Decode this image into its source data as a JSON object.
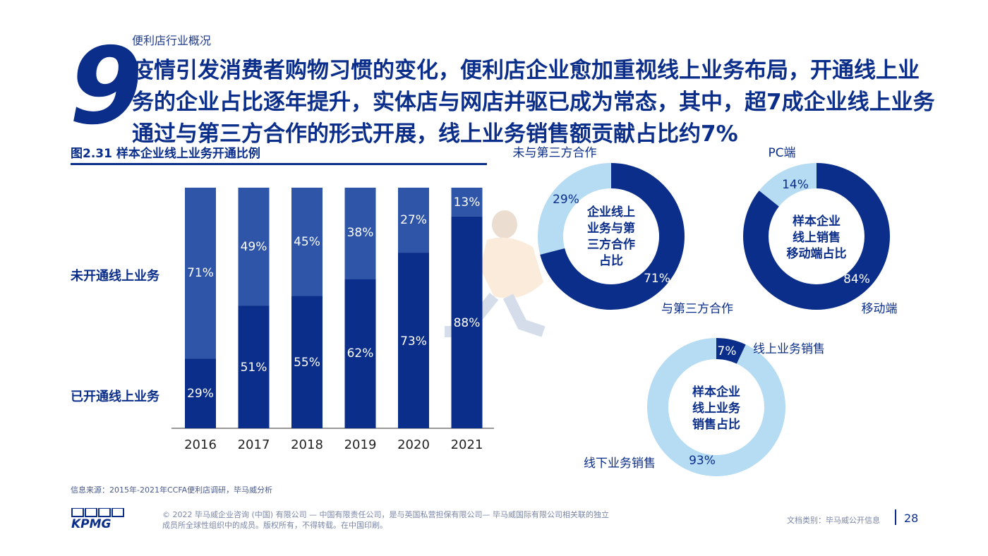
{
  "section_label": "便利店行业概况",
  "big_number": "9",
  "headline": "疫情引发消费者购物习惯的变化，便利店企业愈加重视线上业务布局，开通线上业务的企业占比逐年提升，实体店与网店并驱已成为常态，其中，超7成企业线上业务通过与第三方合作的形式开展，线上业务销售额贡献占比约7%",
  "figure_title": "图2.31 样本企业线上业务开通比例",
  "row_labels": {
    "not_open": "未开通线上业务",
    "open": "已开通线上业务"
  },
  "source": "信息来源：2015年-2021年CCFA便利店调研，毕马威分析",
  "footer": {
    "copyright": "© 2022 毕马威企业咨询 (中国) 有限公司 — 中国有限责任公司，是与英国私营担保有限公司— 毕马威国际有限公司相关联的独立成员所全球性组织中的成员。版权所有，不得转载。在中国印刷。",
    "doc_class": "文档类别：毕马威公开信息",
    "page": "28",
    "logo": "KPMG"
  },
  "colors": {
    "dark": "#0b2e8a",
    "mid": "#2f55a8",
    "light": "#b5dcf3",
    "accent": "#0b2e8a"
  },
  "chart_data": [
    {
      "type": "bar",
      "title": "图2.31 样本企业线上业务开通比例",
      "stacked": true,
      "categories": [
        "2016",
        "2017",
        "2018",
        "2019",
        "2020",
        "2021"
      ],
      "series": [
        {
          "name": "已开通线上业务",
          "values": [
            29,
            51,
            55,
            62,
            73,
            88
          ],
          "labels": [
            "29%",
            "51%",
            "55%",
            "62%",
            "73%",
            "88%"
          ]
        },
        {
          "name": "未开通线上业务",
          "values": [
            71,
            49,
            45,
            38,
            27,
            13
          ],
          "labels": [
            "71%",
            "49%",
            "45%",
            "38%",
            "27%",
            "13%"
          ]
        }
      ],
      "ylim": [
        0,
        100
      ]
    },
    {
      "type": "pie",
      "donut": true,
      "center_label": "企业线上业务与第三方合作占比",
      "center_lines": [
        "企业线上",
        "业务与第",
        "三方合作",
        "占比"
      ],
      "slices": [
        {
          "name": "与第三方合作",
          "value": 71,
          "label": "71%",
          "color": "#0b2e8a"
        },
        {
          "name": "未与第三方合作",
          "value": 29,
          "label": "29%",
          "color": "#b5dcf3"
        }
      ]
    },
    {
      "type": "pie",
      "donut": true,
      "center_label": "样本企业线上销售移动端占比",
      "center_lines": [
        "样本企业",
        "线上销售",
        "移动端占比"
      ],
      "slices": [
        {
          "name": "移动端",
          "value": 84,
          "label": "84%",
          "color": "#0b2e8a"
        },
        {
          "name": "PC端",
          "value": 14,
          "label": "14%",
          "color": "#b5dcf3"
        }
      ]
    },
    {
      "type": "pie",
      "donut": true,
      "center_label": "样本企业线上业务销售占比",
      "center_lines": [
        "样本企业",
        "线上业务",
        "销售占比"
      ],
      "slices": [
        {
          "name": "线上业务销售",
          "value": 7,
          "label": "7%",
          "color": "#0b2e8a"
        },
        {
          "name": "线下业务销售",
          "value": 93,
          "label": "93%",
          "color": "#b5dcf3"
        }
      ]
    }
  ]
}
